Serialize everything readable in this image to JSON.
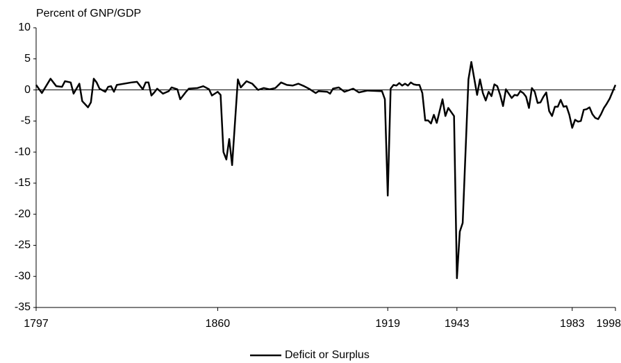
{
  "chart_data": {
    "type": "line",
    "ylabel": "Percent of GNP/GDP",
    "x": [
      1797,
      1799,
      1802,
      1804,
      1806,
      1807,
      1809,
      1810,
      1812,
      1813,
      1815,
      1816,
      1817,
      1818,
      1819,
      1821,
      1822,
      1823,
      1824,
      1825,
      1830,
      1832,
      1834,
      1835,
      1836,
      1837,
      1838,
      1839,
      1841,
      1843,
      1844,
      1846,
      1847,
      1849,
      1850,
      1853,
      1855,
      1857,
      1858,
      1860,
      1861,
      1862,
      1863,
      1864,
      1865,
      1867,
      1868,
      1870,
      1872,
      1874,
      1876,
      1878,
      1880,
      1882,
      1884,
      1886,
      1888,
      1890,
      1892,
      1894,
      1895,
      1898,
      1899,
      1900,
      1902,
      1904,
      1907,
      1909,
      1912,
      1917,
      1918,
      1919,
      1920,
      1921,
      1922,
      1923,
      1924,
      1925,
      1926,
      1927,
      1928,
      1929,
      1930,
      1931,
      1932,
      1933,
      1934,
      1935,
      1936,
      1938,
      1939,
      1940,
      1942,
      1943,
      1944,
      1945,
      1947,
      1948,
      1950,
      1951,
      1952,
      1953,
      1954,
      1955,
      1956,
      1957,
      1958,
      1959,
      1960,
      1961,
      1962,
      1963,
      1964,
      1965,
      1966,
      1967,
      1968,
      1969,
      1970,
      1971,
      1972,
      1973,
      1974,
      1975,
      1976,
      1977,
      1978,
      1979,
      1980,
      1981,
      1982,
      1983,
      1984,
      1985,
      1986,
      1987,
      1988,
      1989,
      1990,
      1991,
      1992,
      1993,
      1994,
      1995,
      1996,
      1997,
      1998
    ],
    "series": [
      {
        "name": "Deficit or Surplus",
        "color": "#000000",
        "values": [
          0.8,
          -0.5,
          1.8,
          0.6,
          0.5,
          1.4,
          1.2,
          -0.6,
          1.0,
          -1.8,
          -2.8,
          -2.0,
          1.8,
          1.2,
          0.2,
          -0.3,
          0.5,
          0.6,
          -0.3,
          0.8,
          1.2,
          1.3,
          0.1,
          1.2,
          1.2,
          -0.9,
          -0.4,
          0.2,
          -0.6,
          -0.2,
          0.4,
          0.1,
          -1.5,
          -0.3,
          0.2,
          0.3,
          0.6,
          0.1,
          -0.9,
          -0.3,
          -0.8,
          -10.0,
          -11.2,
          -7.9,
          -12.1,
          1.7,
          0.4,
          1.4,
          1.0,
          0.0,
          0.3,
          0.1,
          0.3,
          1.2,
          0.8,
          0.7,
          1.0,
          0.6,
          0.1,
          -0.5,
          -0.2,
          -0.3,
          -0.6,
          0.2,
          0.4,
          -0.3,
          0.2,
          -0.4,
          -0.1,
          -0.2,
          -1.5,
          -17.0,
          0.2,
          0.8,
          0.7,
          1.1,
          0.7,
          1.0,
          0.7,
          1.2,
          0.9,
          0.8,
          0.8,
          -0.5,
          -4.9,
          -4.9,
          -5.4,
          -4.0,
          -5.3,
          -1.5,
          -4.2,
          -2.9,
          -4.2,
          -30.3,
          -22.8,
          -21.4,
          1.7,
          4.5,
          -0.8,
          1.7,
          -0.5,
          -1.7,
          -0.3,
          -1.0,
          0.9,
          0.6,
          -0.8,
          -2.6,
          0.1,
          -0.6,
          -1.3,
          -0.8,
          -0.9,
          -0.2,
          -0.5,
          -1.1,
          -2.9,
          0.3,
          -0.3,
          -2.1,
          -2.0,
          -1.1,
          -0.4,
          -3.4,
          -4.2,
          -2.7,
          -2.7,
          -1.6,
          -2.7,
          -2.6,
          -4.0,
          -6.1,
          -4.8,
          -5.1,
          -5.0,
          -3.2,
          -3.1,
          -2.8,
          -3.9,
          -4.5,
          -4.7,
          -3.9,
          -2.9,
          -2.2,
          -1.4,
          -0.3,
          0.8
        ]
      }
    ],
    "xlim": [
      1797,
      1998
    ],
    "xticks": [
      1797,
      1860,
      1919,
      1943,
      1983,
      1998
    ],
    "ylim": [
      -35,
      10
    ],
    "yticks": [
      10,
      5,
      0,
      -5,
      -10,
      -15,
      -20,
      -25,
      -30,
      -35
    ],
    "grid": false,
    "legend": "bottom"
  }
}
